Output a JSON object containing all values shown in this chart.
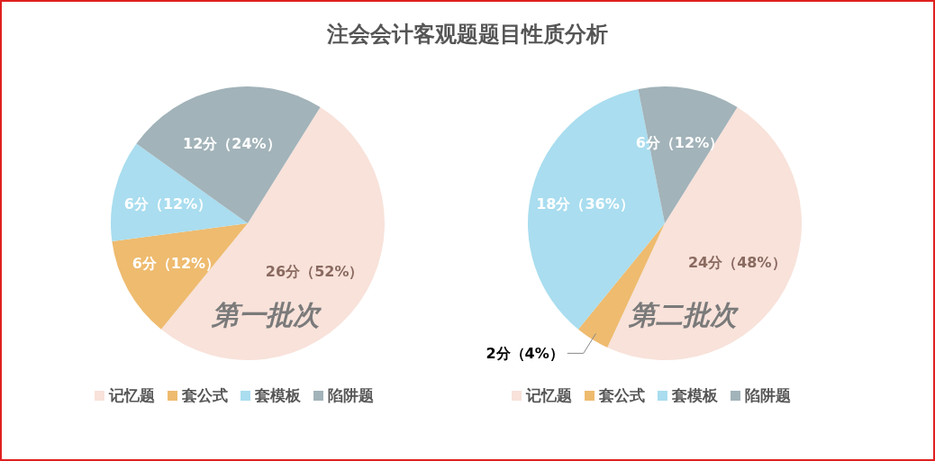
{
  "chart_data": [
    {
      "type": "pie",
      "title": "注会会计客观题题目性质分析",
      "categories": [
        "记忆题",
        "套公式",
        "套模板",
        "陷阱题"
      ],
      "values": [
        26,
        6,
        6,
        12
      ],
      "colors": [
        "#f8e2da",
        "#eebb6f",
        "#a9ddef",
        "#a2b3b9"
      ],
      "value_labels": [
        "26分（52%）",
        "6分（12%）",
        "6分（12%）",
        "12分（24%）"
      ],
      "annotations": [
        "第一批次"
      ],
      "legend": "bottom"
    },
    {
      "type": "pie",
      "categories": [
        "记忆题",
        "套公式",
        "套模板",
        "陷阱题"
      ],
      "values": [
        24,
        2,
        18,
        6
      ],
      "colors": [
        "#f8e2da",
        "#eebb6f",
        "#a9ddef",
        "#a2b3b9"
      ],
      "value_labels": [
        "24分（48%）",
        "2分（4%）",
        "18分（36%）",
        "6分（12%）"
      ],
      "annotations": [
        "第二批次"
      ],
      "legend": "bottom"
    }
  ]
}
